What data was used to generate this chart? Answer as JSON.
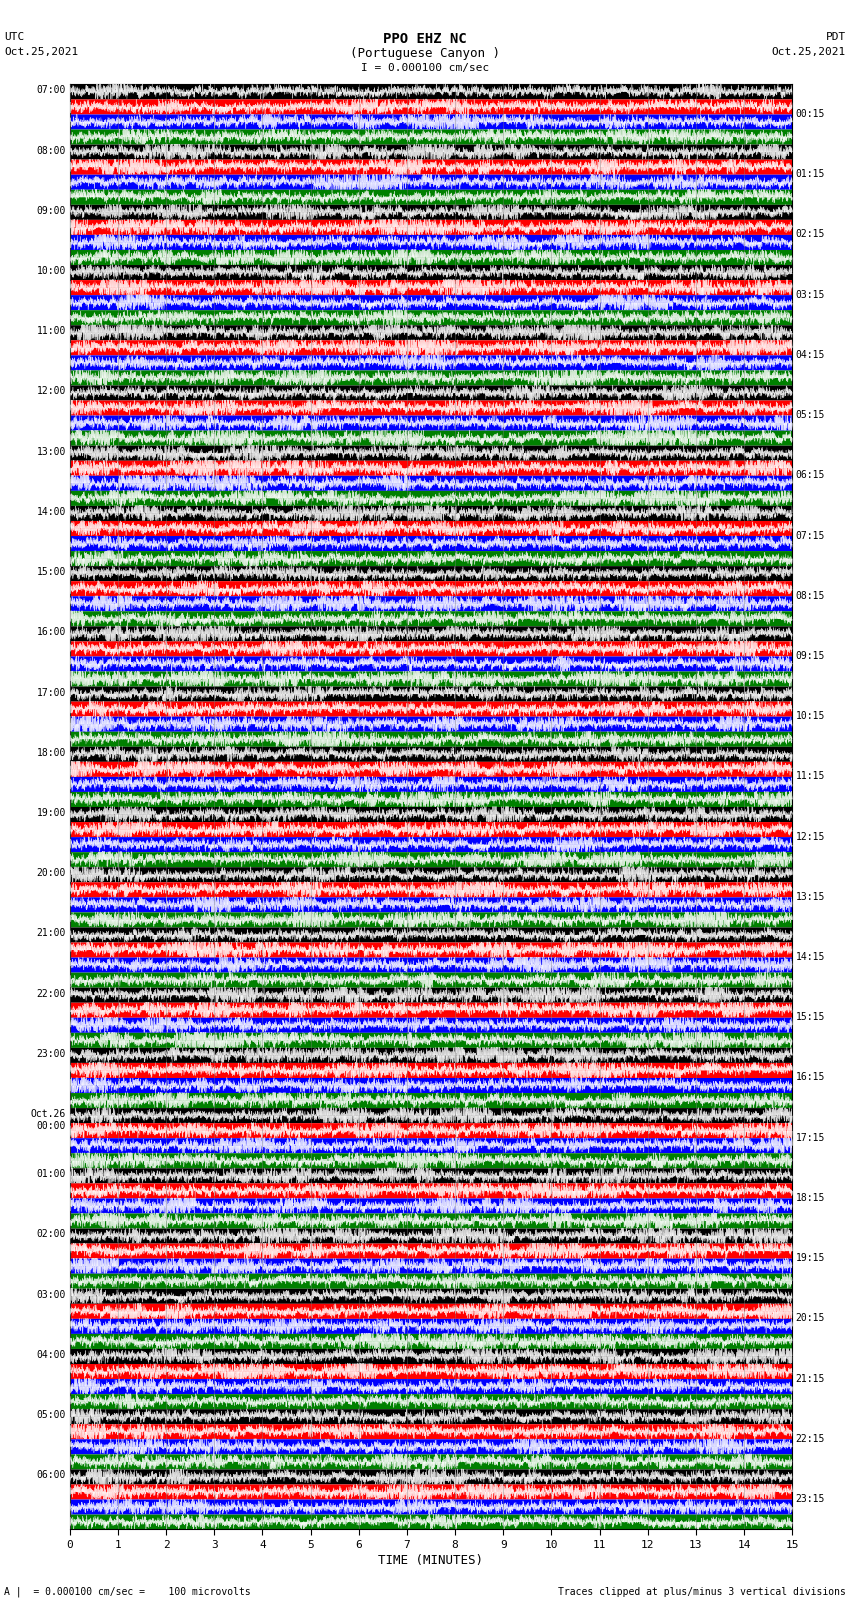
{
  "title_line1": "PPO EHZ NC",
  "title_line2": "(Portuguese Canyon )",
  "scale_label": "I = 0.000100 cm/sec",
  "bottom_left_label": "A |  = 0.000100 cm/sec =    100 microvolts",
  "bottom_right_label": "Traces clipped at plus/minus 3 vertical divisions",
  "xlabel": "TIME (MINUTES)",
  "left_times": [
    "07:00",
    "08:00",
    "09:00",
    "10:00",
    "11:00",
    "12:00",
    "13:00",
    "14:00",
    "15:00",
    "16:00",
    "17:00",
    "18:00",
    "19:00",
    "20:00",
    "21:00",
    "22:00",
    "23:00",
    "Oct.26\n00:00",
    "01:00",
    "02:00",
    "03:00",
    "04:00",
    "05:00",
    "06:00"
  ],
  "right_times": [
    "00:15",
    "01:15",
    "02:15",
    "03:15",
    "04:15",
    "05:15",
    "06:15",
    "07:15",
    "08:15",
    "09:15",
    "10:15",
    "11:15",
    "12:15",
    "13:15",
    "14:15",
    "15:15",
    "16:15",
    "17:15",
    "18:15",
    "19:15",
    "20:15",
    "21:15",
    "22:15",
    "23:15"
  ],
  "n_rows": 24,
  "n_cols": 4,
  "colors": [
    "black",
    "red",
    "blue",
    "green"
  ],
  "bg_color": "white",
  "xmin": 0,
  "xmax": 15,
  "xticks": [
    0,
    1,
    2,
    3,
    4,
    5,
    6,
    7,
    8,
    9,
    10,
    11,
    12,
    13,
    14,
    15
  ]
}
